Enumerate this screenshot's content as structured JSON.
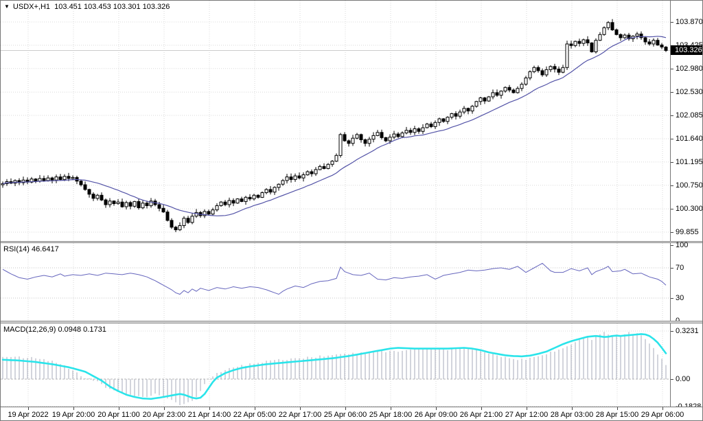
{
  "header": {
    "dropdown_icon": "▼",
    "symbol": "USDX+,H1",
    "ohlc_values": "103.451 103.453 103.301 103.326"
  },
  "colors": {
    "grid": "#d8d8d8",
    "panel_border": "#767676",
    "candle_up_fill": "#ffffff",
    "candle_down_fill": "#000000",
    "candle_outline": "#000000",
    "ma_line": "#5353a7",
    "rsi_line": "#6565bd",
    "macd_hist": "#a5a9b8",
    "macd_signal": "#2ae4ea",
    "level_line": "#c6c6c6",
    "bid_line": "#cccccc",
    "current_price_bg": "#000000",
    "current_price_text": "#ffffff",
    "text": "#000000"
  },
  "main_panel": {
    "price_axis": [
      "103.870",
      "103.425",
      "102.980",
      "102.530",
      "102.085",
      "101.640",
      "101.195",
      "100.750",
      "100.300",
      "99.855"
    ],
    "current_price": "103.326"
  },
  "rsi_panel": {
    "label": "RSI(14) 46.6417",
    "axis_labels": [
      "100",
      "70",
      "30",
      "0"
    ],
    "level_lines": [
      70,
      30
    ]
  },
  "macd_panel": {
    "label": "MACD(12,26,9) 0.0948 0.1731",
    "axis_labels": [
      "0.3231",
      "0.00",
      "-0.1828"
    ]
  },
  "time_axis": {
    "labels": [
      "19 Apr 2022",
      "19 Apr 20:00",
      "20 Apr 11:00",
      "20 Apr 23:00",
      "21 Apr 14:00",
      "22 Apr 05:00",
      "22 Apr 17:00",
      "25 Apr 06:00",
      "25 Apr 18:00",
      "26 Apr 09:00",
      "26 Apr 21:00",
      "27 Apr 12:00",
      "28 Apr 03:00",
      "28 Apr 15:00",
      "29 Apr 06:00"
    ]
  },
  "chart_data": [
    {
      "type": "candlestick",
      "symbol": "USDX+",
      "timeframe": "H1",
      "open": 103.451,
      "high": 103.453,
      "low": 103.301,
      "close": 103.326,
      "y_range": [
        99.855,
        103.87
      ],
      "ma_window": 16,
      "closes": [
        100.78,
        100.82,
        100.79,
        100.84,
        100.8,
        100.85,
        100.81,
        100.87,
        100.83,
        100.88,
        100.84,
        100.89,
        100.85,
        100.91,
        100.86,
        100.92,
        100.88,
        100.9,
        100.83,
        100.76,
        100.67,
        100.58,
        100.5,
        100.56,
        100.47,
        100.38,
        100.45,
        100.4,
        100.43,
        100.34,
        100.42,
        100.35,
        100.44,
        100.32,
        100.41,
        100.36,
        100.45,
        100.38,
        100.31,
        100.24,
        100.08,
        99.95,
        99.9,
        99.98,
        100.12,
        100.04,
        100.16,
        100.23,
        100.17,
        100.25,
        100.2,
        100.28,
        100.36,
        100.43,
        100.38,
        100.46,
        100.41,
        100.49,
        100.44,
        100.52,
        100.49,
        100.56,
        100.52,
        100.61,
        100.67,
        100.62,
        100.71,
        100.77,
        100.84,
        100.91,
        100.86,
        100.93,
        100.89,
        100.95,
        101.01,
        100.97,
        101.05,
        101.11,
        101.07,
        101.15,
        101.21,
        101.32,
        101.72,
        101.6,
        101.55,
        101.65,
        101.72,
        101.62,
        101.55,
        101.63,
        101.7,
        101.76,
        101.66,
        101.6,
        101.67,
        101.73,
        101.68,
        101.75,
        101.8,
        101.76,
        101.83,
        101.78,
        101.85,
        101.92,
        101.87,
        101.95,
        102.02,
        101.97,
        102.05,
        102.12,
        102.07,
        102.15,
        102.22,
        102.17,
        102.26,
        102.35,
        102.42,
        102.36,
        102.44,
        102.52,
        102.47,
        102.55,
        102.62,
        102.57,
        102.52,
        102.6,
        102.68,
        102.8,
        102.92,
        103.0,
        102.94,
        102.86,
        102.96,
        103.02,
        102.97,
        102.91,
        103.0,
        103.45,
        103.42,
        103.5,
        103.46,
        103.53,
        103.47,
        103.3,
        103.52,
        103.63,
        103.76,
        103.86,
        103.72,
        103.63,
        103.57,
        103.62,
        103.55,
        103.6,
        103.64,
        103.57,
        103.49,
        103.45,
        103.52,
        103.43,
        103.39,
        103.326
      ]
    },
    {
      "type": "line",
      "name": "RSI(14)",
      "last_value": 46.6417,
      "y_range": [
        0,
        100
      ],
      "levels": [
        30,
        70
      ],
      "anchors": [
        [
          0,
          68
        ],
        [
          2,
          62
        ],
        [
          4,
          57
        ],
        [
          6,
          55
        ],
        [
          8,
          58
        ],
        [
          10,
          60
        ],
        [
          12,
          58
        ],
        [
          14,
          62
        ],
        [
          15,
          59
        ],
        [
          17,
          61
        ],
        [
          19,
          60
        ],
        [
          21,
          62
        ],
        [
          23,
          60
        ],
        [
          25,
          63
        ],
        [
          27,
          62
        ],
        [
          29,
          61
        ],
        [
          31,
          63
        ],
        [
          33,
          61
        ],
        [
          35,
          58
        ],
        [
          37,
          53
        ],
        [
          39,
          47
        ],
        [
          41,
          41
        ],
        [
          42,
          37
        ],
        [
          43,
          35
        ],
        [
          44,
          40
        ],
        [
          45,
          37
        ],
        [
          46,
          42
        ],
        [
          47,
          39
        ],
        [
          48,
          43
        ],
        [
          50,
          40
        ],
        [
          52,
          44
        ],
        [
          54,
          42
        ],
        [
          56,
          45
        ],
        [
          58,
          43
        ],
        [
          60,
          45
        ],
        [
          62,
          44
        ],
        [
          64,
          41
        ],
        [
          66,
          37
        ],
        [
          67,
          35
        ],
        [
          68,
          39
        ],
        [
          69,
          42
        ],
        [
          71,
          46
        ],
        [
          73,
          44
        ],
        [
          75,
          49
        ],
        [
          77,
          52
        ],
        [
          79,
          53
        ],
        [
          81,
          56
        ],
        [
          82,
          71
        ],
        [
          83,
          65
        ],
        [
          84,
          63
        ],
        [
          85,
          61
        ],
        [
          87,
          60
        ],
        [
          89,
          63
        ],
        [
          91,
          55
        ],
        [
          93,
          54
        ],
        [
          95,
          57
        ],
        [
          97,
          56
        ],
        [
          99,
          58
        ],
        [
          101,
          59
        ],
        [
          103,
          61
        ],
        [
          105,
          55
        ],
        [
          107,
          60
        ],
        [
          109,
          62
        ],
        [
          111,
          64
        ],
        [
          113,
          67
        ],
        [
          115,
          66
        ],
        [
          117,
          67
        ],
        [
          119,
          69
        ],
        [
          121,
          70
        ],
        [
          123,
          68
        ],
        [
          125,
          72
        ],
        [
          127,
          64
        ],
        [
          129,
          70
        ],
        [
          131,
          76
        ],
        [
          132,
          71
        ],
        [
          133,
          66
        ],
        [
          134,
          64
        ],
        [
          136,
          64
        ],
        [
          138,
          69
        ],
        [
          140,
          66
        ],
        [
          142,
          70
        ],
        [
          143,
          61
        ],
        [
          144,
          65
        ],
        [
          146,
          69
        ],
        [
          147,
          72
        ],
        [
          148,
          65
        ],
        [
          150,
          66
        ],
        [
          151,
          68
        ],
        [
          153,
          62
        ],
        [
          155,
          63
        ],
        [
          157,
          58
        ],
        [
          159,
          55
        ],
        [
          160,
          52
        ],
        [
          161,
          47
        ]
      ]
    },
    {
      "type": "bar+line",
      "name": "MACD(12,26,9)",
      "macd_last": 0.0948,
      "signal_last": 0.1731,
      "y_range": [
        -0.1828,
        0.3231
      ],
      "hist_anchors": [
        [
          0,
          0.155
        ],
        [
          4,
          0.15
        ],
        [
          8,
          0.14
        ],
        [
          12,
          0.12
        ],
        [
          14,
          0.105
        ],
        [
          16,
          0.075
        ],
        [
          18,
          0.045
        ],
        [
          19,
          0.025
        ],
        [
          20,
          0.012
        ],
        [
          21,
          0.005
        ],
        [
          22,
          -0.005
        ],
        [
          23,
          -0.02
        ],
        [
          24,
          -0.04
        ],
        [
          26,
          -0.07
        ],
        [
          28,
          -0.09
        ],
        [
          30,
          -0.1
        ],
        [
          32,
          -0.11
        ],
        [
          34,
          -0.125
        ],
        [
          36,
          -0.115
        ],
        [
          37,
          -0.1
        ],
        [
          38,
          -0.11
        ],
        [
          39,
          -0.12
        ],
        [
          40,
          -0.13
        ],
        [
          41,
          -0.145
        ],
        [
          42,
          -0.16
        ],
        [
          43,
          -0.17
        ],
        [
          44,
          -0.165
        ],
        [
          45,
          -0.155
        ],
        [
          46,
          -0.15
        ],
        [
          47,
          -0.12
        ],
        [
          48,
          -0.08
        ],
        [
          49,
          -0.04
        ],
        [
          50,
          0
        ],
        [
          51,
          0.02
        ],
        [
          52,
          0.04
        ],
        [
          54,
          0.06
        ],
        [
          56,
          0.08
        ],
        [
          58,
          0.09
        ],
        [
          60,
          0.1
        ],
        [
          62,
          0.11
        ],
        [
          64,
          0.12
        ],
        [
          66,
          0.125
        ],
        [
          68,
          0.13
        ],
        [
          70,
          0.135
        ],
        [
          72,
          0.14
        ],
        [
          74,
          0.145
        ],
        [
          76,
          0.15
        ],
        [
          78,
          0.155
        ],
        [
          80,
          0.16
        ],
        [
          82,
          0.165
        ],
        [
          84,
          0.17
        ],
        [
          86,
          0.175
        ],
        [
          88,
          0.18
        ],
        [
          90,
          0.185
        ],
        [
          92,
          0.19
        ],
        [
          94,
          0.185
        ],
        [
          96,
          0.19
        ],
        [
          98,
          0.195
        ],
        [
          100,
          0.2
        ],
        [
          102,
          0.205
        ],
        [
          104,
          0.21
        ],
        [
          106,
          0.205
        ],
        [
          108,
          0.2
        ],
        [
          110,
          0.205
        ],
        [
          112,
          0.21
        ],
        [
          114,
          0.2
        ],
        [
          116,
          0.19
        ],
        [
          118,
          0.175
        ],
        [
          120,
          0.16
        ],
        [
          122,
          0.145
        ],
        [
          124,
          0.135
        ],
        [
          126,
          0.13
        ],
        [
          128,
          0.14
        ],
        [
          130,
          0.15
        ],
        [
          132,
          0.17
        ],
        [
          134,
          0.19
        ],
        [
          136,
          0.21
        ],
        [
          138,
          0.235
        ],
        [
          140,
          0.26
        ],
        [
          141,
          0.27
        ],
        [
          142,
          0.285
        ],
        [
          143,
          0.27
        ],
        [
          144,
          0.29
        ],
        [
          145,
          0.3
        ],
        [
          146,
          0.318
        ],
        [
          147,
          0.3
        ],
        [
          148,
          0.29
        ],
        [
          149,
          0.3
        ],
        [
          150,
          0.295
        ],
        [
          151,
          0.3
        ],
        [
          152,
          0.31
        ],
        [
          153,
          0.3
        ],
        [
          154,
          0.31
        ],
        [
          155,
          0.3
        ],
        [
          156,
          0.27
        ],
        [
          157,
          0.24
        ],
        [
          158,
          0.21
        ],
        [
          159,
          0.17
        ],
        [
          160,
          0.13
        ],
        [
          161,
          0.0948
        ]
      ],
      "signal_anchors": [
        [
          0,
          0.13
        ],
        [
          4,
          0.125
        ],
        [
          8,
          0.115
        ],
        [
          12,
          0.1
        ],
        [
          16,
          0.08
        ],
        [
          20,
          0.05
        ],
        [
          22,
          0.02
        ],
        [
          24,
          -0.01
        ],
        [
          26,
          -0.05
        ],
        [
          28,
          -0.08
        ],
        [
          30,
          -0.105
        ],
        [
          32,
          -0.12
        ],
        [
          34,
          -0.13
        ],
        [
          36,
          -0.133
        ],
        [
          38,
          -0.125
        ],
        [
          40,
          -0.115
        ],
        [
          42,
          -0.105
        ],
        [
          43,
          -0.1
        ],
        [
          44,
          -0.105
        ],
        [
          45,
          -0.115
        ],
        [
          46,
          -0.125
        ],
        [
          47,
          -0.13
        ],
        [
          48,
          -0.125
        ],
        [
          49,
          -0.1
        ],
        [
          50,
          -0.06
        ],
        [
          51,
          -0.02
        ],
        [
          52,
          0.01
        ],
        [
          54,
          0.04
        ],
        [
          56,
          0.06
        ],
        [
          58,
          0.075
        ],
        [
          60,
          0.085
        ],
        [
          64,
          0.1
        ],
        [
          68,
          0.11
        ],
        [
          72,
          0.12
        ],
        [
          76,
          0.13
        ],
        [
          80,
          0.14
        ],
        [
          84,
          0.155
        ],
        [
          88,
          0.175
        ],
        [
          92,
          0.195
        ],
        [
          94,
          0.205
        ],
        [
          96,
          0.21
        ],
        [
          100,
          0.205
        ],
        [
          104,
          0.205
        ],
        [
          108,
          0.205
        ],
        [
          112,
          0.21
        ],
        [
          114,
          0.205
        ],
        [
          116,
          0.195
        ],
        [
          118,
          0.18
        ],
        [
          120,
          0.17
        ],
        [
          122,
          0.16
        ],
        [
          124,
          0.155
        ],
        [
          126,
          0.153
        ],
        [
          128,
          0.158
        ],
        [
          130,
          0.17
        ],
        [
          132,
          0.185
        ],
        [
          134,
          0.21
        ],
        [
          136,
          0.235
        ],
        [
          138,
          0.255
        ],
        [
          140,
          0.27
        ],
        [
          142,
          0.285
        ],
        [
          144,
          0.29
        ],
        [
          145,
          0.287
        ],
        [
          146,
          0.283
        ],
        [
          147,
          0.285
        ],
        [
          148,
          0.29
        ],
        [
          149,
          0.292
        ],
        [
          150,
          0.29
        ],
        [
          152,
          0.295
        ],
        [
          154,
          0.3
        ],
        [
          155,
          0.303
        ],
        [
          156,
          0.3
        ],
        [
          157,
          0.29
        ],
        [
          158,
          0.27
        ],
        [
          159,
          0.245
        ],
        [
          160,
          0.21
        ],
        [
          161,
          0.1731
        ]
      ]
    }
  ]
}
